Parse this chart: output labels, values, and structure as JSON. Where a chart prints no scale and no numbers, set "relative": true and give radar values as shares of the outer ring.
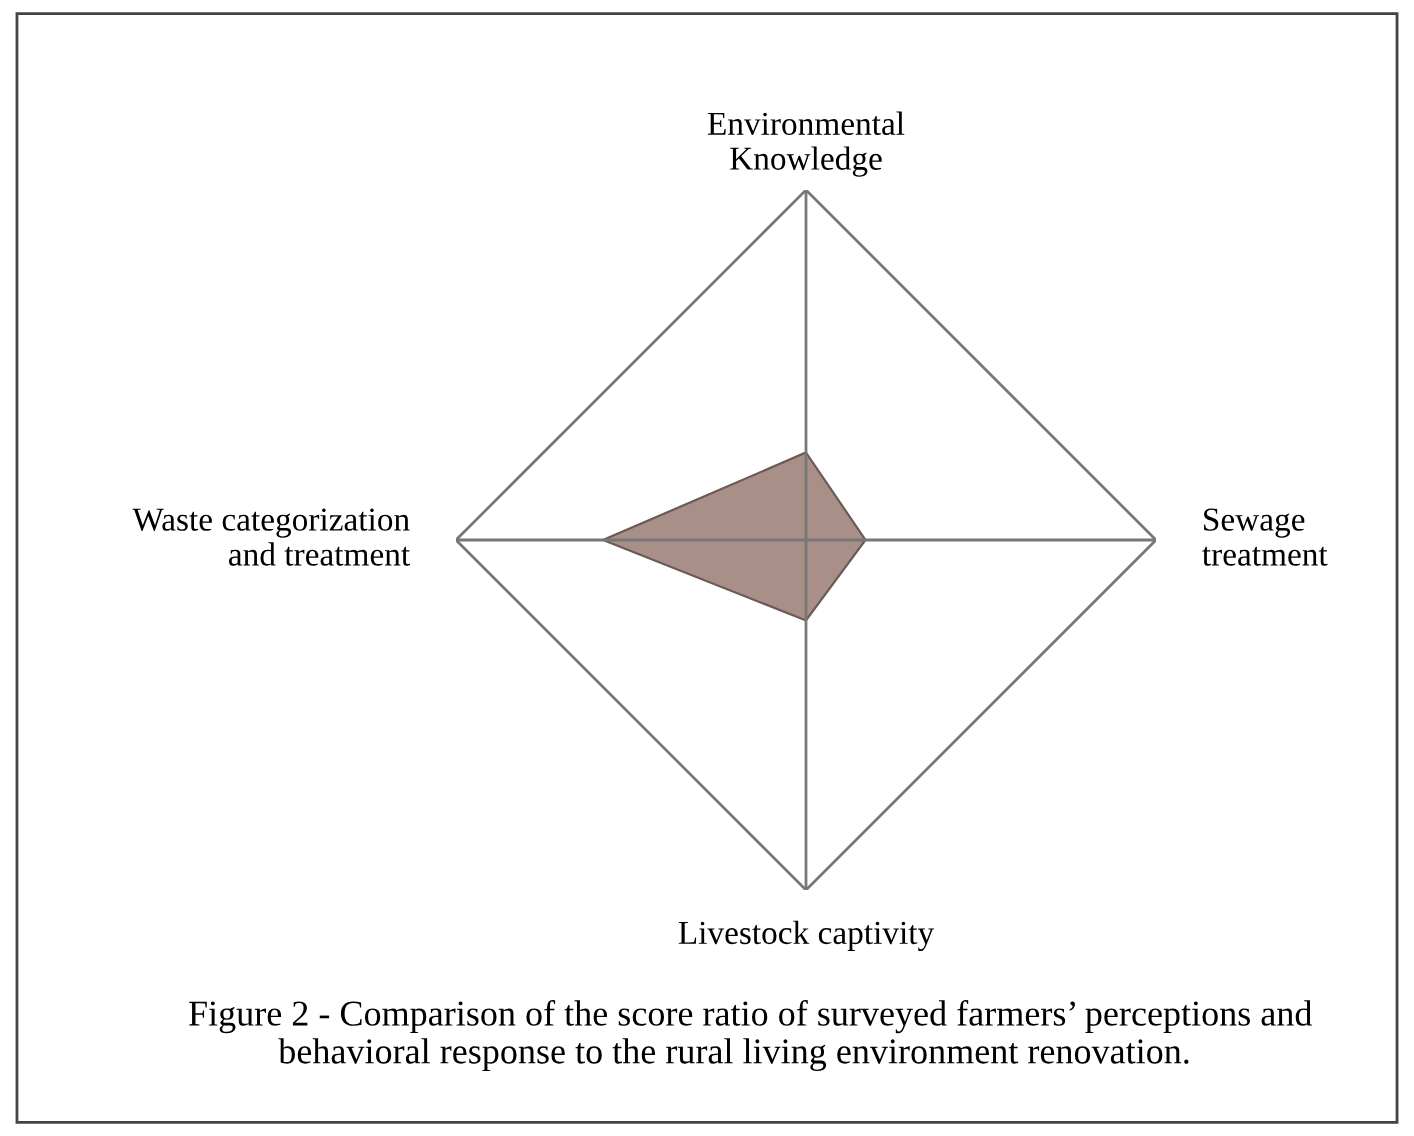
{
  "chart_data": {
    "type": "radar",
    "relative": true,
    "categories": [
      "Environmental\nKnowledge",
      "Sewage\ntreatment",
      "Livestock captivity",
      "Waste categorization\nand treatment"
    ],
    "series": [
      {
        "color": "#a89088",
        "values": [
          0.25,
          0.17,
          0.23,
          0.58
        ]
      }
    ],
    "annotations": [
      "Figure 2 - Comparison of the score ratio of surveyed farmers’ perceptions and\n          behavioral response to the rural living environment renovation."
    ]
  }
}
